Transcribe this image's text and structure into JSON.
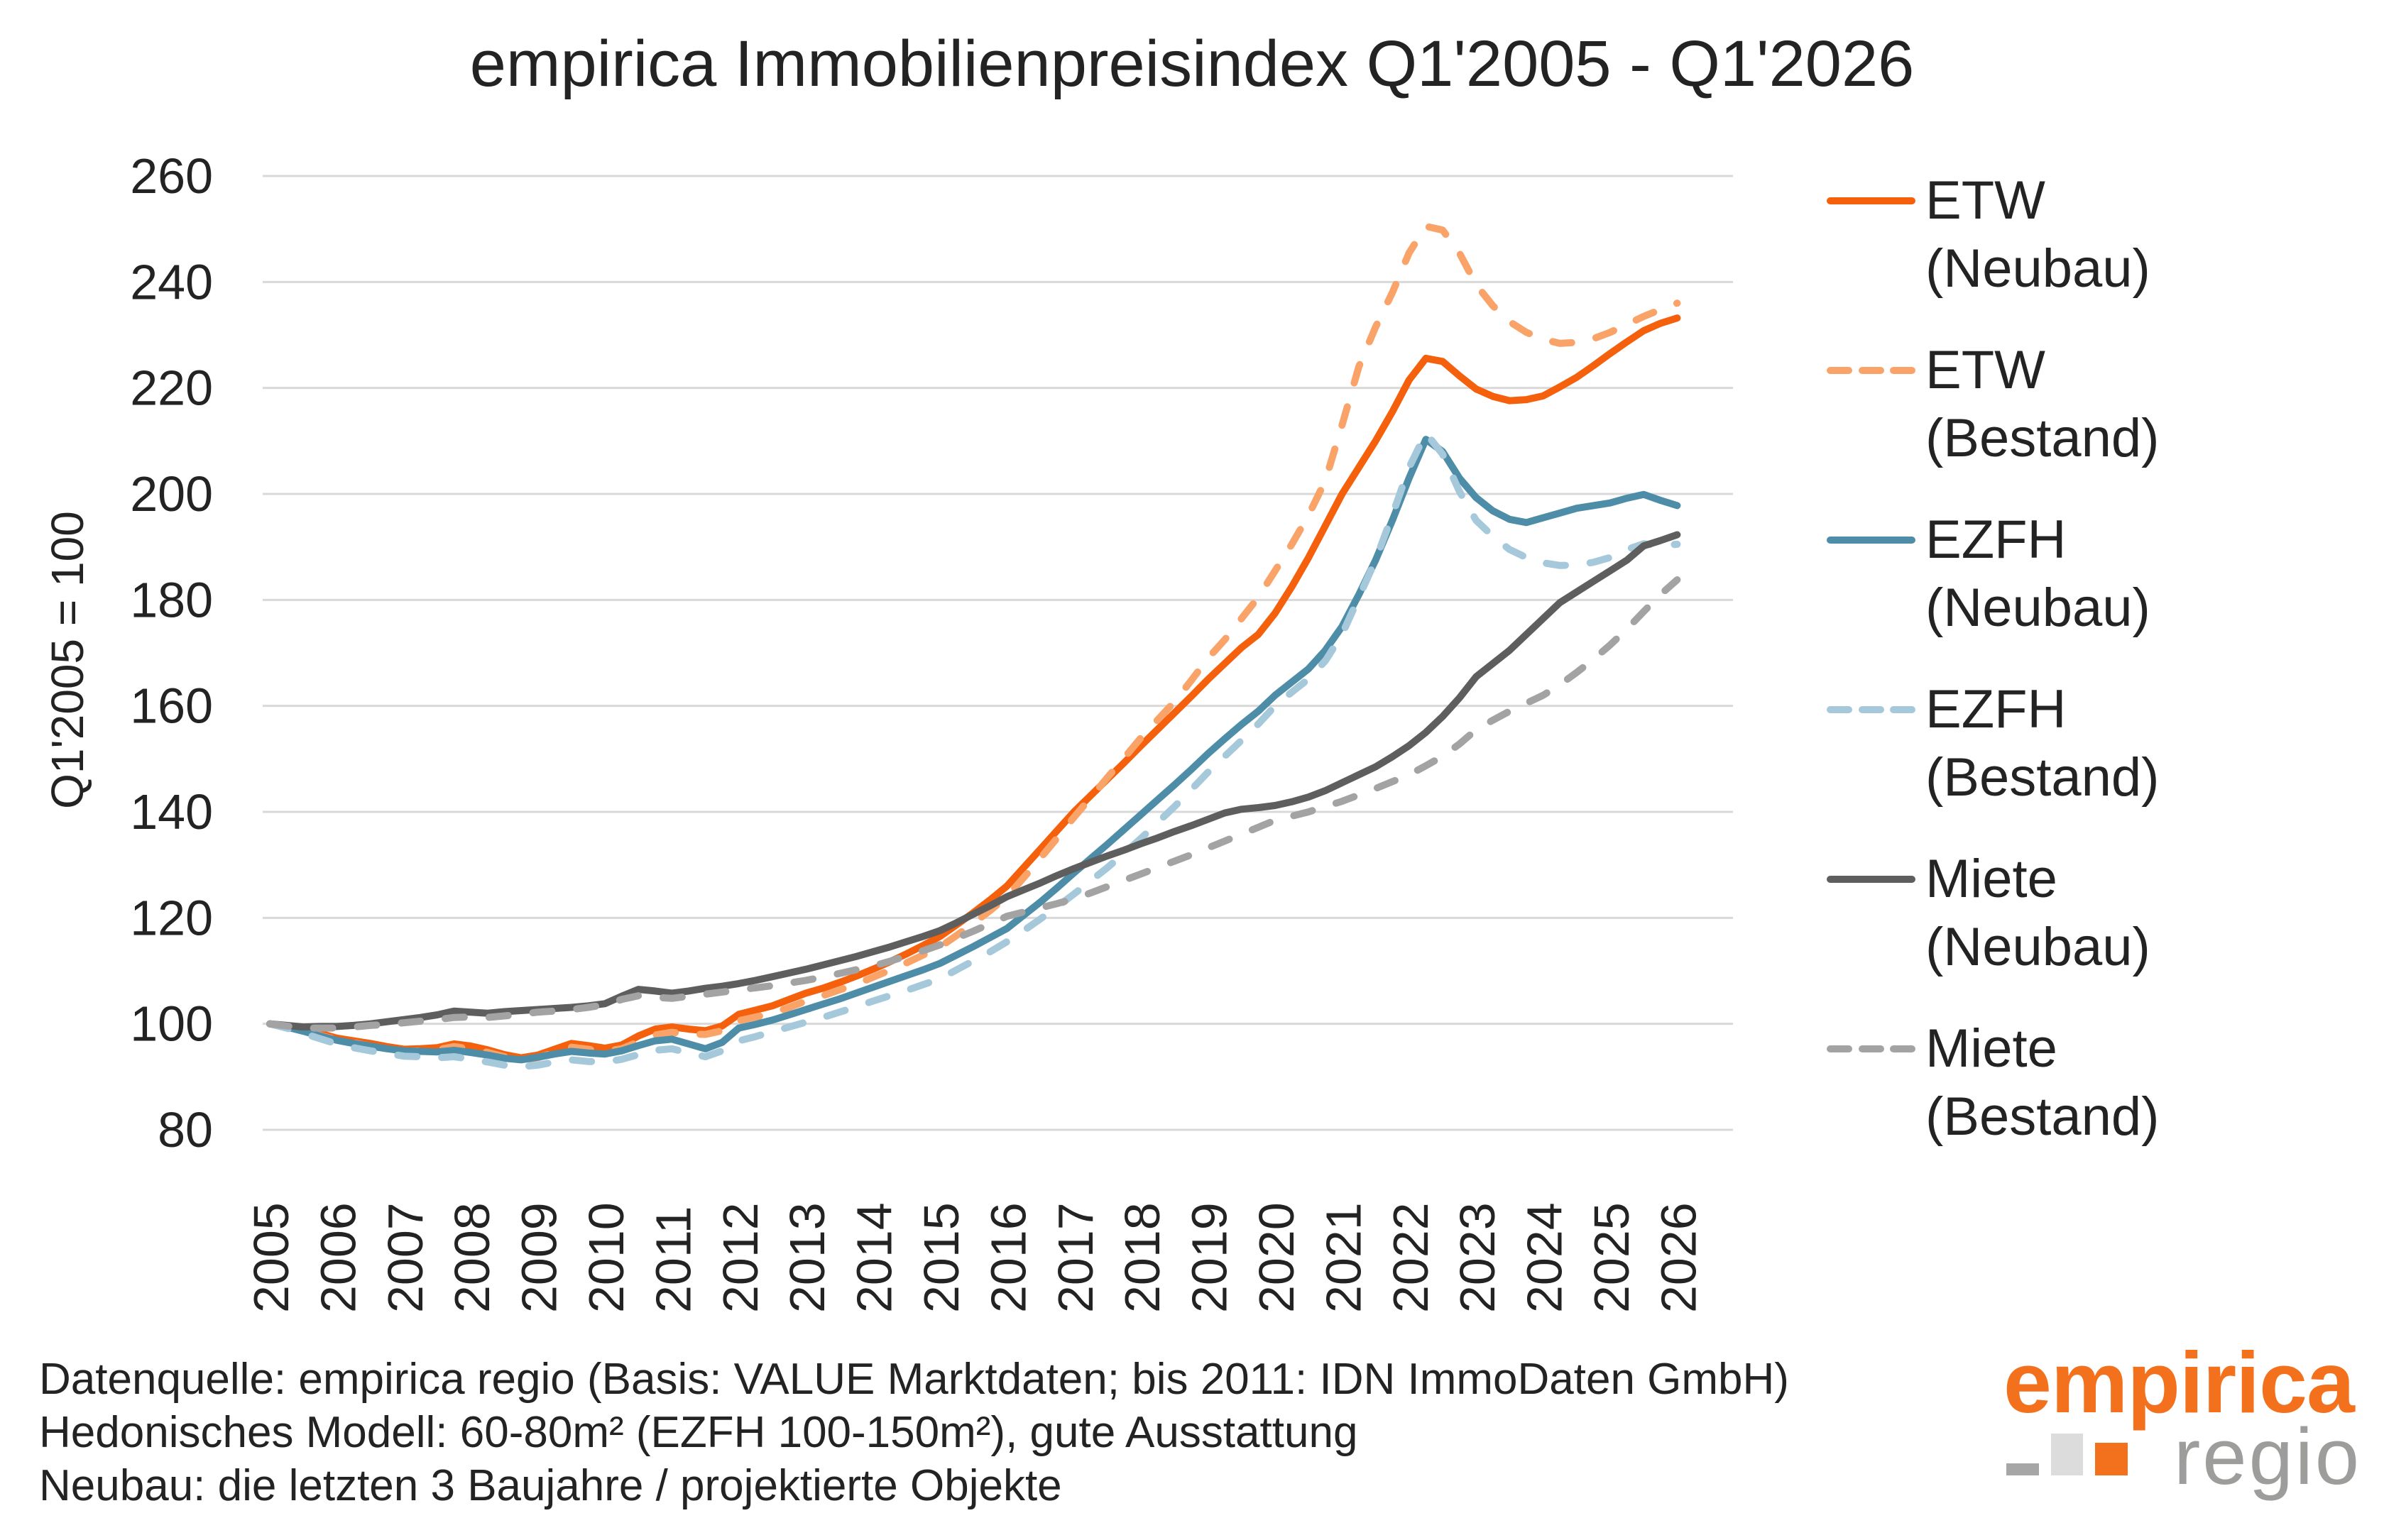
{
  "title": "empirica Immobilienpreisindex Q1'2005 - Q1'2026",
  "y_axis": {
    "title": "Q1'2005 = 100",
    "ticks": [
      260,
      240,
      220,
      200,
      180,
      160,
      140,
      120,
      100,
      80
    ]
  },
  "x_axis": {
    "years": [
      2005,
      2006,
      2007,
      2008,
      2009,
      2010,
      2011,
      2012,
      2013,
      2014,
      2015,
      2016,
      2017,
      2018,
      2019,
      2020,
      2021,
      2022,
      2023,
      2024,
      2025,
      2026
    ]
  },
  "chart_data": {
    "type": "line",
    "title": "empirica Immobilienpreisindex Q1'2005 - Q1'2026",
    "xlabel": "",
    "ylabel": "Q1'2005 = 100",
    "ylim": [
      80,
      260
    ],
    "x_start": 2005,
    "x_step_years": 0.25,
    "grid": "horizontal",
    "legend_position": "right",
    "series": [
      {
        "name": "ETW (Neubau)",
        "color": "#F4600C",
        "dash": false,
        "values": [
          100,
          99.6,
          99.1,
          98.2,
          97.3,
          96.8,
          96.3,
          95.7,
          95.2,
          95.3,
          95.5,
          96.2,
          95.8,
          95.1,
          94.2,
          93.6,
          94.1,
          95.2,
          96.3,
          95.9,
          95.4,
          96,
          97.7,
          99,
          99.4,
          99,
          98.7,
          99.6,
          101.8,
          102.6,
          103.4,
          104.6,
          105.8,
          106.7,
          107.8,
          109,
          110.3,
          111.7,
          113.2,
          114.8,
          116.5,
          118.7,
          121,
          123.4,
          126,
          129.5,
          133,
          136.5,
          140,
          143.1,
          146.2,
          149.3,
          152.5,
          155.6,
          158.7,
          161.8,
          165,
          168,
          171,
          173.5,
          177.5,
          182.5,
          188,
          194,
          200,
          205,
          210,
          215.5,
          221.5,
          225.6,
          225,
          222.3,
          219.8,
          218.4,
          217.6,
          217.8,
          218.5,
          220.2,
          222,
          224.2,
          226.5,
          228.7,
          230.8,
          232.2,
          233.2
        ]
      },
      {
        "name": "ETW (Bestand)",
        "color": "#F9A369",
        "dash": true,
        "values": [
          100,
          99.4,
          98.7,
          97.8,
          97,
          96.4,
          95.8,
          95.3,
          94.8,
          94.9,
          95.1,
          95.7,
          95.3,
          94.6,
          93.8,
          93.2,
          93.6,
          94.6,
          95.6,
          95.2,
          94.8,
          95.3,
          96.6,
          97.9,
          98.4,
          98.1,
          98,
          98.7,
          100.6,
          101.3,
          102,
          103.1,
          104.3,
          105.3,
          106.4,
          107.5,
          108.8,
          110.1,
          111.5,
          113,
          114.5,
          116.7,
          119,
          121.4,
          124,
          127.6,
          131.3,
          135.1,
          139,
          142.7,
          146.5,
          150.2,
          154,
          157.4,
          160.8,
          164.8,
          169,
          172.5,
          176.5,
          180.5,
          185.5,
          190.5,
          196,
          202.5,
          213,
          224,
          231.5,
          238,
          245.5,
          250.5,
          249.8,
          245.5,
          239.5,
          235.5,
          232.5,
          230.5,
          229.2,
          228.4,
          228.6,
          229.3,
          230.5,
          232,
          233.5,
          234.8,
          236
        ]
      },
      {
        "name": "EZFH (Neubau)",
        "color": "#4E8DA7",
        "dash": false,
        "values": [
          100,
          99.4,
          98.6,
          97.7,
          96.9,
          96.3,
          95.8,
          95.3,
          94.9,
          94.8,
          94.7,
          95,
          94.6,
          94.1,
          93.5,
          93.2,
          93.7,
          94.3,
          94.8,
          94.5,
          94.3,
          94.9,
          95.9,
          96.8,
          97.1,
          96.2,
          95.3,
          96.5,
          99.2,
          99.9,
          100.7,
          101.7,
          102.7,
          103.7,
          104.7,
          105.8,
          106.9,
          108,
          109.1,
          110.2,
          111.4,
          113,
          114.6,
          116.3,
          118,
          120.5,
          123,
          125.7,
          128.5,
          131.2,
          133.9,
          136.7,
          139.5,
          142.3,
          145.1,
          148,
          151,
          153.8,
          156.5,
          159,
          162,
          164.5,
          167,
          170.5,
          175,
          181,
          187.5,
          195,
          203,
          210.3,
          208,
          203,
          199.3,
          196.8,
          195.2,
          194.6,
          195.5,
          196.4,
          197.3,
          197.8,
          198.3,
          199.2,
          199.9,
          198.8,
          197.8
        ]
      },
      {
        "name": "EZFH (Bestand)",
        "color": "#A5C9DB",
        "dash": true,
        "values": [
          100,
          99.2,
          98.2,
          97.2,
          96.2,
          95.5,
          94.9,
          94.4,
          93.9,
          93.8,
          93.6,
          93.8,
          93.3,
          92.8,
          92.2,
          91.9,
          92.2,
          92.8,
          93.2,
          92.9,
          92.8,
          93.3,
          94.2,
          95,
          95.3,
          94.5,
          93.8,
          94.9,
          96.8,
          97.6,
          98.5,
          99.4,
          100.3,
          101.2,
          102.2,
          103.2,
          104.3,
          105.3,
          106.3,
          107.4,
          108.5,
          110.2,
          111.9,
          113.6,
          115.5,
          117.6,
          119.8,
          122.1,
          124.5,
          127,
          129.5,
          132.2,
          135,
          138,
          141,
          144.2,
          147.5,
          150.5,
          153.5,
          156.6,
          160,
          162.6,
          165.1,
          168.5,
          173.5,
          180.5,
          187.5,
          196,
          205,
          211.5,
          207.5,
          200.5,
          195,
          192,
          189.5,
          188,
          187,
          186.5,
          186.6,
          187.1,
          188,
          189.5,
          190.6,
          190.2,
          190.5
        ]
      },
      {
        "name": "Miete (Neubau)",
        "color": "#5E5E5E",
        "dash": false,
        "values": [
          100,
          99.7,
          99.4,
          99.5,
          99.5,
          99.7,
          100,
          100.4,
          100.8,
          101.2,
          101.7,
          102.4,
          102.2,
          102,
          102.3,
          102.5,
          102.7,
          102.9,
          103.1,
          103.4,
          103.8,
          105.2,
          106.5,
          106.2,
          105.8,
          106.2,
          106.7,
          107.1,
          107.6,
          108.2,
          108.9,
          109.6,
          110.3,
          111.1,
          111.9,
          112.7,
          113.6,
          114.5,
          115.5,
          116.5,
          117.6,
          119.1,
          120.7,
          122.3,
          124,
          125.3,
          126.6,
          128,
          129.3,
          130.5,
          131.7,
          132.8,
          134,
          135.1,
          136.3,
          137.4,
          138.6,
          139.8,
          140.5,
          140.8,
          141.2,
          141.9,
          142.8,
          144,
          145.5,
          147,
          148.5,
          150.4,
          152.5,
          155,
          158,
          161.5,
          165.5,
          168,
          170.5,
          173.5,
          176.5,
          179.5,
          181.5,
          183.5,
          185.5,
          187.5,
          190.2,
          191.2,
          192.3
        ]
      },
      {
        "name": "Miete (Bestand)",
        "color": "#A3A3A3",
        "dash": true,
        "values": [
          100,
          99.6,
          99.2,
          99.2,
          99.2,
          99.4,
          99.7,
          99.9,
          100.2,
          100.5,
          100.8,
          101.2,
          101.3,
          101.2,
          101.5,
          101.8,
          102.2,
          102.4,
          102.7,
          103.1,
          103.6,
          104.6,
          105.3,
          105,
          104.8,
          105.2,
          105.6,
          106,
          106.4,
          106.8,
          107.2,
          107.7,
          108.2,
          108.8,
          109.5,
          110.2,
          110.9,
          111.8,
          112.8,
          113.8,
          114.9,
          116.2,
          117.5,
          118.9,
          120.3,
          121.1,
          121.9,
          122.7,
          123.6,
          124.7,
          125.9,
          127.1,
          128.3,
          129.5,
          130.7,
          131.9,
          133.2,
          134.5,
          135.8,
          137.1,
          138.4,
          139.2,
          140,
          141,
          142,
          143.2,
          144.4,
          145.7,
          147,
          148.7,
          150.5,
          152.8,
          155.5,
          157.3,
          159,
          160.5,
          162,
          164,
          166.3,
          168.8,
          171.5,
          174.5,
          177.8,
          181,
          183.8
        ]
      }
    ]
  },
  "legend": [
    {
      "label": "ETW",
      "sublabel": "(Neubau)",
      "series": 0
    },
    {
      "label": "ETW",
      "sublabel": "(Bestand)",
      "series": 1
    },
    {
      "label": "EZFH",
      "sublabel": "(Neubau)",
      "series": 2
    },
    {
      "label": "EZFH",
      "sublabel": "(Bestand)",
      "series": 3
    },
    {
      "label": "Miete",
      "sublabel": "(Neubau)",
      "series": 4
    },
    {
      "label": "Miete",
      "sublabel": "(Bestand)",
      "series": 5
    }
  ],
  "footer": {
    "lines": [
      "Datenquelle: empirica regio (Basis: VALUE Marktdaten; bis 2011: IDN ImmoDaten GmbH)",
      "Hedonisches Modell: 60-80m² (EZFH 100-150m²), gute Ausstattung",
      "Neubau: die letzten 3 Baujahre / projektierte Objekte"
    ]
  },
  "logo": {
    "brand": "empirica",
    "sub": "regio"
  },
  "colors": {
    "grid": "#D9D9D9",
    "text": "#232323",
    "logo_orange": "#F3701D",
    "logo_gray": "#9D9D9C",
    "logo_squares": [
      "#A6A6A6",
      "#DCDCDC",
      "#F3701D"
    ]
  }
}
